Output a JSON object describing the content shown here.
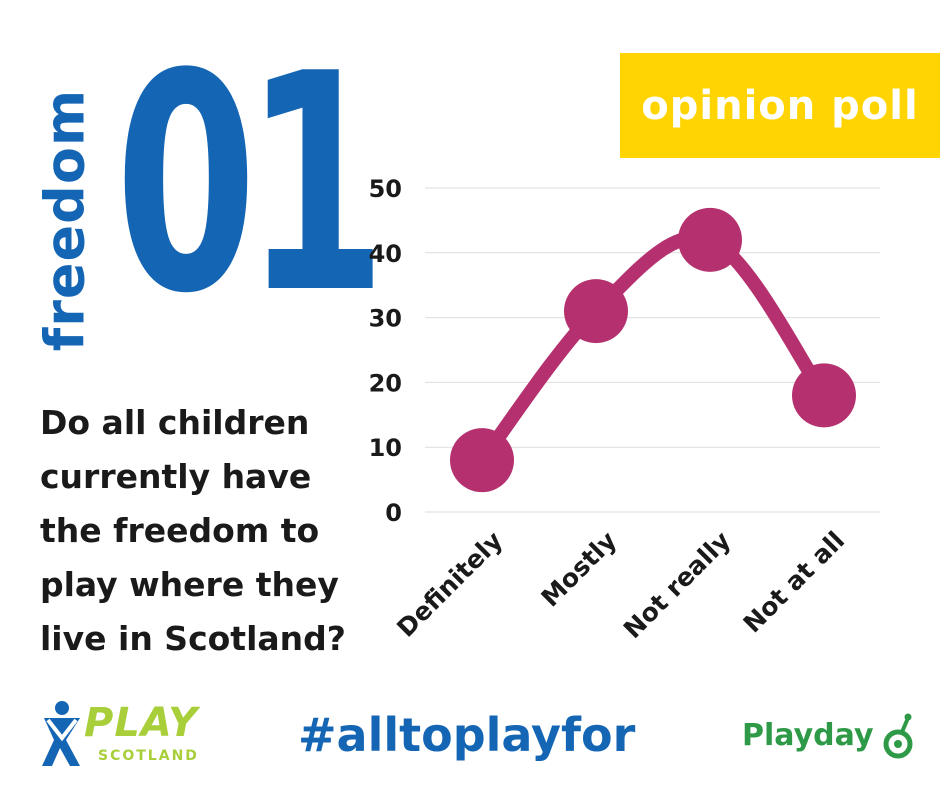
{
  "header": {
    "theme_word": "freedom",
    "number": "01",
    "badge": "opinion poll"
  },
  "question": "Do all children currently have the freedom to play where they live in Scotland?",
  "footer": {
    "hashtag": "#alltoplayfor",
    "left_logo": {
      "main": "PLAY",
      "sub": "SCOTLAND"
    },
    "right_logo": {
      "main": "Playday"
    }
  },
  "colors": {
    "blue": "#1565b5",
    "yellow": "#ffd400",
    "line": "#b5306e",
    "green": "#a8cf3a",
    "playday_green": "#2e9a47"
  },
  "chart_data": {
    "type": "line",
    "categories": [
      "Definitely",
      "Mostly",
      "Not really",
      "Not at all"
    ],
    "values": [
      8,
      31,
      42,
      18
    ],
    "ylim": [
      0,
      50
    ],
    "yticks": [
      0,
      10,
      20,
      30,
      40,
      50
    ],
    "title": "",
    "xlabel": "",
    "ylabel": "",
    "grid": true,
    "smooth": true,
    "markers": true,
    "line_color": "#b5306e"
  }
}
